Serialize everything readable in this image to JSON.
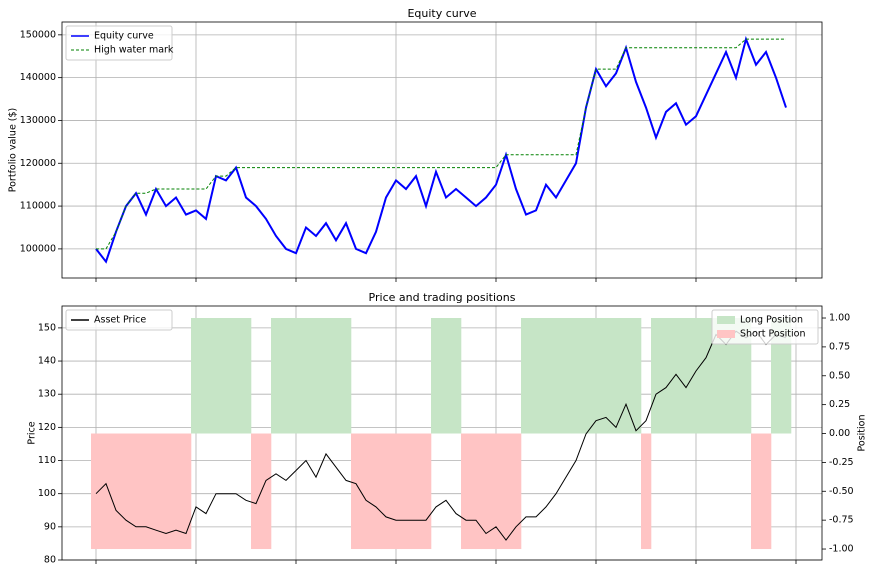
{
  "chart_data": [
    {
      "type": "line",
      "title": "Equity curve",
      "ylabel": "Portfolio value ($)",
      "ylim": [
        93200,
        153000
      ],
      "yticks": [
        100000,
        110000,
        120000,
        130000,
        140000,
        150000
      ],
      "grid": true,
      "legend": "upper left",
      "series": [
        {
          "name": "Equity curve",
          "color": "#0000ff",
          "style": "solid",
          "values": [
            100000,
            97000,
            104000,
            110000,
            113000,
            108000,
            114000,
            110000,
            112000,
            108000,
            109000,
            107000,
            117000,
            116000,
            119000,
            112000,
            110000,
            107000,
            103000,
            100000,
            99000,
            105000,
            103000,
            106000,
            102000,
            106000,
            100000,
            99000,
            104000,
            112000,
            116000,
            114000,
            117000,
            110000,
            118000,
            112000,
            114000,
            112000,
            110000,
            112000,
            115000,
            122000,
            114000,
            108000,
            109000,
            115000,
            112000,
            116000,
            120000,
            133000,
            142000,
            138000,
            141000,
            147000,
            139000,
            133000,
            126000,
            132000,
            134000,
            129000,
            131000,
            136000,
            141000,
            146000,
            140000,
            149000,
            143000,
            146000,
            140000,
            133000
          ]
        },
        {
          "name": "High water mark",
          "color": "#008000",
          "style": "dashed",
          "values": [
            100000,
            100000,
            104000,
            110000,
            113000,
            113000,
            114000,
            114000,
            114000,
            114000,
            114000,
            114000,
            117000,
            117000,
            119000,
            119000,
            119000,
            119000,
            119000,
            119000,
            119000,
            119000,
            119000,
            119000,
            119000,
            119000,
            119000,
            119000,
            119000,
            119000,
            119000,
            119000,
            119000,
            119000,
            119000,
            119000,
            119000,
            119000,
            119000,
            119000,
            119000,
            122000,
            122000,
            122000,
            122000,
            122000,
            122000,
            122000,
            122000,
            133000,
            142000,
            142000,
            142000,
            147000,
            147000,
            147000,
            147000,
            147000,
            147000,
            147000,
            147000,
            147000,
            147000,
            147000,
            147000,
            149000,
            149000,
            149000,
            149000,
            149000
          ]
        }
      ]
    },
    {
      "type": "line",
      "title": "Price and trading positions",
      "ylabel": "Price",
      "y2label": "Position",
      "ylim": [
        80,
        156.6
      ],
      "yticks": [
        80,
        90,
        100,
        110,
        120,
        130,
        140,
        150
      ],
      "y2lim": [
        -1.095,
        1.104
      ],
      "y2ticks": [
        {
          "value": -1,
          "label": "-1.00"
        },
        {
          "value": -0.75,
          "label": "-0.75"
        },
        {
          "value": -0.5,
          "label": "-0.50"
        },
        {
          "value": -0.25,
          "label": "-0.25"
        },
        {
          "value": 0,
          "label": "0.00"
        },
        {
          "value": 0.25,
          "label": "0.25"
        },
        {
          "value": 0.5,
          "label": "0.50"
        },
        {
          "value": 0.75,
          "label": "0.75"
        },
        {
          "value": 1,
          "label": "1.00"
        }
      ],
      "grid": true,
      "legend": "upper left",
      "y2legend": "upper right",
      "series": [
        {
          "name": "Asset Price",
          "color": "#000000",
          "style": "solid",
          "values": [
            100,
            103,
            95,
            92,
            90,
            90,
            89,
            88,
            89,
            88,
            96,
            94,
            100,
            100,
            100,
            98,
            97,
            104,
            106,
            104,
            107,
            110,
            105,
            112,
            108,
            104,
            103,
            98,
            96,
            93,
            92,
            92,
            92,
            92,
            96,
            98,
            94,
            92,
            92,
            88,
            90,
            86,
            90,
            93,
            93,
            96,
            100,
            105,
            110,
            118,
            122,
            123,
            120,
            127,
            119,
            122,
            130,
            132,
            136,
            132,
            137,
            141,
            148,
            145,
            149,
            147,
            149,
            145,
            148,
            147
          ]
        },
        {
          "name": "Long Position",
          "color": "#c6e5c6",
          "type": "bar",
          "axis": "y2",
          "values": [
            null,
            null,
            null,
            null,
            null,
            null,
            null,
            null,
            null,
            null,
            1,
            1,
            1,
            1,
            1,
            1,
            null,
            null,
            1,
            1,
            1,
            1,
            1,
            1,
            1,
            1,
            null,
            null,
            null,
            null,
            null,
            null,
            null,
            null,
            1,
            1,
            1,
            null,
            null,
            null,
            null,
            null,
            null,
            1,
            1,
            1,
            1,
            1,
            1,
            1,
            1,
            1,
            1,
            1,
            1,
            null,
            1,
            1,
            1,
            1,
            1,
            1,
            1,
            1,
            1,
            1,
            null,
            null,
            1,
            1
          ]
        },
        {
          "name": "Short Position",
          "color": "#ffc4c4",
          "type": "bar",
          "axis": "y2",
          "values": [
            -1,
            -1,
            -1,
            -1,
            -1,
            -1,
            -1,
            -1,
            -1,
            -1,
            null,
            null,
            null,
            null,
            null,
            null,
            -1,
            -1,
            null,
            null,
            null,
            null,
            null,
            null,
            null,
            null,
            -1,
            -1,
            -1,
            -1,
            -1,
            -1,
            -1,
            -1,
            null,
            null,
            null,
            -1,
            -1,
            -1,
            -1,
            -1,
            -1,
            null,
            null,
            null,
            null,
            null,
            null,
            null,
            null,
            null,
            null,
            null,
            null,
            -1,
            null,
            null,
            null,
            null,
            null,
            null,
            null,
            null,
            null,
            null,
            -1,
            -1,
            null,
            null
          ]
        }
      ]
    }
  ]
}
